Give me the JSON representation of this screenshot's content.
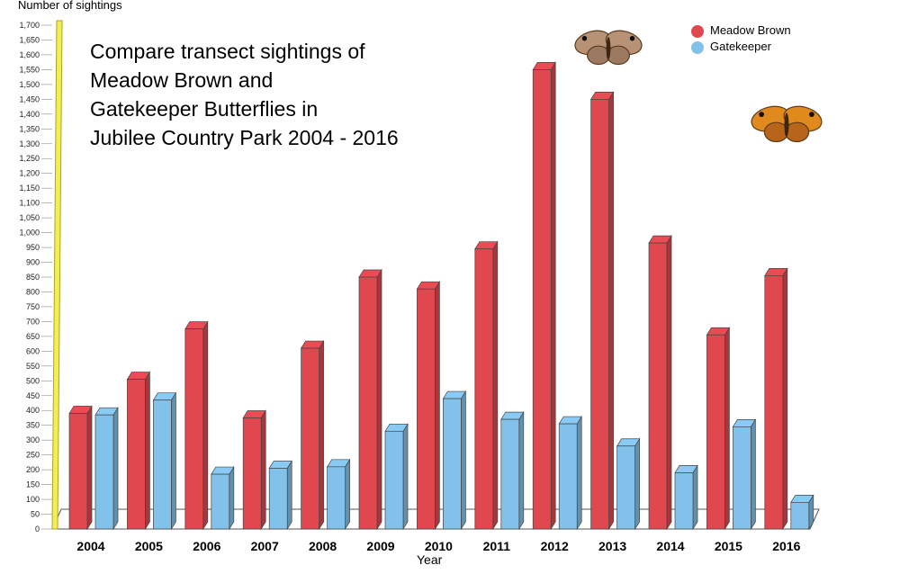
{
  "chart_data": {
    "type": "bar",
    "title_lines": [
      "Compare transect sightings of",
      "Meadow Brown and",
      "Gatekeeper Butterflies in",
      "Jubilee Country Park 2004 - 2016"
    ],
    "xlabel": "Year",
    "ylabel": "Number of sightings",
    "categories": [
      "2004",
      "2005",
      "2006",
      "2007",
      "2008",
      "2009",
      "2010",
      "2011",
      "2012",
      "2013",
      "2014",
      "2015",
      "2016"
    ],
    "series": [
      {
        "name": "Meadow Brown",
        "color": "#e0484f",
        "values": [
          390,
          505,
          675,
          375,
          610,
          850,
          810,
          945,
          1550,
          1450,
          965,
          655,
          855
        ]
      },
      {
        "name": "Gatekeeper",
        "color": "#82c1e9",
        "values": [
          385,
          435,
          185,
          205,
          210,
          330,
          440,
          370,
          355,
          280,
          190,
          345,
          90
        ]
      }
    ],
    "ylim": [
      0,
      1700
    ],
    "yticks": [
      "0",
      "50",
      "100",
      "150",
      "200",
      "250",
      "300",
      "350",
      "400",
      "450",
      "500",
      "550",
      "600",
      "650",
      "700",
      "750",
      "800",
      "850",
      "900",
      "950",
      "1,000",
      "1,050",
      "1,100",
      "1,150",
      "1,200",
      "1,250",
      "1,300",
      "1,350",
      "1,400",
      "1,450",
      "1,500",
      "1,550",
      "1,600",
      "1,650",
      "1,700"
    ],
    "legend_position": "top-right",
    "grid": false
  }
}
